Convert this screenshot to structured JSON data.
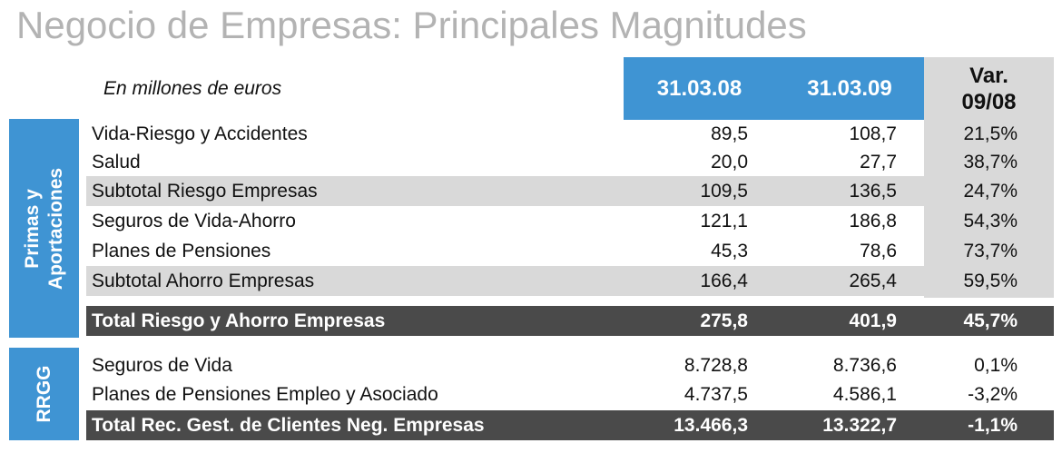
{
  "title": "Negocio de Empresas: Principales Magnitudes",
  "units_note": "En millones de euros",
  "columns": {
    "col1": "31.03.08",
    "col2": "31.03.09",
    "var_line1": "Var.",
    "var_line2": "09/08"
  },
  "sections": {
    "primas": {
      "line1": "Primas y",
      "line2": "Aportaciones"
    },
    "rrgg": "RRGG"
  },
  "rows": [
    {
      "label": "Vida-Riesgo y Accidentes",
      "v1": "89,5",
      "v2": "108,7",
      "var": "21,5%"
    },
    {
      "label": "Salud",
      "v1": "20,0",
      "v2": "27,7",
      "var": "38,7%"
    },
    {
      "label": "Subtotal Riesgo Empresas",
      "v1": "109,5",
      "v2": "136,5",
      "var": "24,7%"
    },
    {
      "label": "Seguros de Vida-Ahorro",
      "v1": "121,1",
      "v2": "186,8",
      "var": "54,3%"
    },
    {
      "label": "Planes de Pensiones",
      "v1": "45,3",
      "v2": "78,6",
      "var": "73,7%"
    },
    {
      "label": "Subtotal Ahorro Empresas",
      "v1": "166,4",
      "v2": "265,4",
      "var": "59,5%"
    },
    {
      "label": "Total Riesgo y Ahorro Empresas",
      "v1": "275,8",
      "v2": "401,9",
      "var": "45,7%"
    },
    {
      "label": "Seguros de Vida",
      "v1": "8.728,8",
      "v2": "8.736,6",
      "var": "0,1%"
    },
    {
      "label": "Planes de Pensiones Empleo y Asociado",
      "v1": "4.737,5",
      "v2": "4.586,1",
      "var": "-3,2%"
    },
    {
      "label": "Total Rec. Gest. de Clientes Neg. Empresas",
      "v1": "13.466,3",
      "v2": "13.322,7",
      "var": "-1,1%"
    }
  ]
}
